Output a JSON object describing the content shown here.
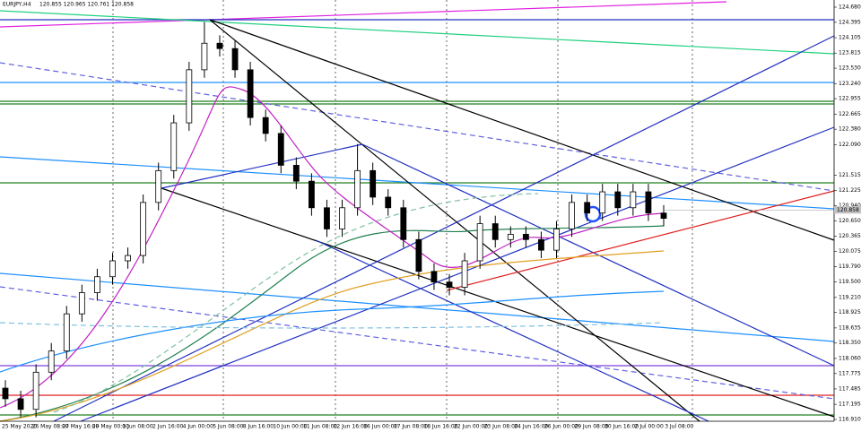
{
  "chart_data": {
    "type": "candlestick",
    "title": "EURJPY,H4",
    "ohlc_header": "120.855 120.965 120.761 120.858",
    "x_labels": [
      "25 May 2020",
      "26 May 08:00",
      "27 May 16:00",
      "29 May 00:00",
      "1 Jun 08:00",
      "2 Jun 16:00",
      "4 Jun 00:00",
      "5 Jun 08:00",
      "8 Jun 16:00",
      "10 Jun 00:00",
      "11 Jun 08:00",
      "12 Jun 16:00",
      "16 Jun 00:00",
      "17 Jun 08:00",
      "18 Jun 16:00",
      "22 Jun 00:00",
      "23 Jun 08:00",
      "24 Jun 16:00",
      "26 Jun 00:00",
      "29 Jun 08:00",
      "30 Jun 16:00",
      "2 Jul 00:00",
      "3 Jul 08:00"
    ],
    "open": [
      117.5,
      117.3,
      117.1,
      117.8,
      118.2,
      118.9,
      119.3,
      119.6,
      119.9,
      120.0,
      121.0,
      121.6,
      122.5,
      123.5,
      124.0,
      123.9,
      123.5,
      122.6,
      122.3,
      121.7,
      121.4,
      120.9,
      120.5,
      120.9,
      121.6,
      121.1,
      120.9,
      120.3,
      119.7,
      119.5,
      119.4,
      119.9,
      120.6,
      120.3,
      120.4,
      120.3,
      120.1,
      120.5,
      121.0,
      120.8,
      121.2,
      120.9,
      121.2,
      120.8
    ],
    "high": [
      117.65,
      117.45,
      117.95,
      118.35,
      119.05,
      119.45,
      119.75,
      120.05,
      120.15,
      121.15,
      121.75,
      122.65,
      123.65,
      124.4,
      124.15,
      124.05,
      123.65,
      122.75,
      122.45,
      121.85,
      121.55,
      121.05,
      121.05,
      122.1,
      121.75,
      121.25,
      121.05,
      120.45,
      119.85,
      119.65,
      120.05,
      120.75,
      120.75,
      120.55,
      120.55,
      120.45,
      120.65,
      121.15,
      121.15,
      121.35,
      121.35,
      121.35,
      121.35,
      120.95
    ],
    "low": [
      117.15,
      116.95,
      116.95,
      117.65,
      118.05,
      118.75,
      119.15,
      119.45,
      119.75,
      119.85,
      120.85,
      121.45,
      122.35,
      123.35,
      123.75,
      123.35,
      122.45,
      122.15,
      121.55,
      121.25,
      120.75,
      120.35,
      120.35,
      120.75,
      120.95,
      120.75,
      120.15,
      119.55,
      119.35,
      119.25,
      119.25,
      119.75,
      120.15,
      120.15,
      120.15,
      119.95,
      119.95,
      120.35,
      120.65,
      120.65,
      120.75,
      120.75,
      120.65,
      120.55
    ],
    "close": [
      117.3,
      117.1,
      117.8,
      118.2,
      118.9,
      119.3,
      119.6,
      119.9,
      120.0,
      121.0,
      121.6,
      122.5,
      123.5,
      124.0,
      123.9,
      123.5,
      122.6,
      122.3,
      121.7,
      121.4,
      120.9,
      120.5,
      120.9,
      121.6,
      121.1,
      120.9,
      120.3,
      119.7,
      119.5,
      119.4,
      119.9,
      120.6,
      120.3,
      120.4,
      120.3,
      120.1,
      120.5,
      121.0,
      120.8,
      121.2,
      120.9,
      121.2,
      120.8,
      120.7
    ],
    "last_price": 120.858,
    "ylim": [
      116.91,
      124.68
    ],
    "yticks": [
      {
        "value": 124.68,
        "label": "124.680"
      },
      {
        "value": 124.395,
        "label": "124.395"
      },
      {
        "value": 124.105,
        "label": "124.105"
      },
      {
        "value": 123.815,
        "label": "123.815"
      },
      {
        "value": 123.53,
        "label": "123.530"
      },
      {
        "value": 123.24,
        "label": "123.240"
      },
      {
        "value": 122.955,
        "label": "122.955"
      },
      {
        "value": 122.665,
        "label": "122.665"
      },
      {
        "value": 122.38,
        "label": "122.380"
      },
      {
        "value": 122.09,
        "label": "122.090"
      },
      {
        "value": 121.515,
        "label": "121.515"
      },
      {
        "value": 121.225,
        "label": "121.225"
      },
      {
        "value": 120.94,
        "label": "120.940"
      },
      {
        "value": 120.65,
        "label": "120.650"
      },
      {
        "value": 120.365,
        "label": "120.365"
      },
      {
        "value": 120.075,
        "label": "120.075"
      },
      {
        "value": 119.79,
        "label": "119.790"
      },
      {
        "value": 119.5,
        "label": "119.500"
      },
      {
        "value": 119.21,
        "label": "119.210"
      },
      {
        "value": 118.925,
        "label": "118.925"
      },
      {
        "value": 118.635,
        "label": "118.635"
      },
      {
        "value": 118.35,
        "label": "118.350"
      },
      {
        "value": 118.06,
        "label": "118.060"
      },
      {
        "value": 117.775,
        "label": "117.775"
      },
      {
        "value": 117.485,
        "label": "117.485"
      },
      {
        "value": 117.195,
        "label": "117.195"
      },
      {
        "value": 116.91,
        "label": "116.910"
      }
    ]
  }
}
